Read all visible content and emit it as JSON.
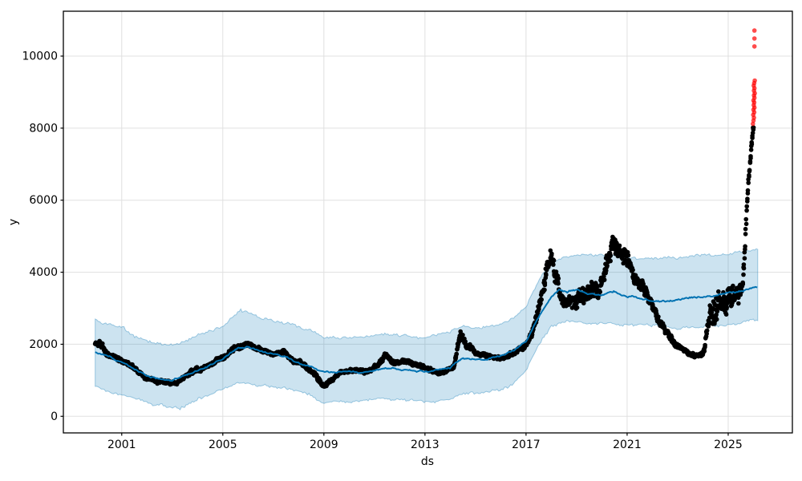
{
  "figure": {
    "background": "#ffffff"
  },
  "chart_data": {
    "type": "scatter",
    "description": "Prophet-style time-series forecast plot: black observed points, blue forecast line (yhat), light-blue uncertainty band, red anomaly points at the recent spike",
    "title": "",
    "xlabel": "ds",
    "ylabel": "y",
    "xlim": [
      1998.69,
      2027.54
    ],
    "ylim": [
      -461,
      11246
    ],
    "x_ticks": [
      2001,
      2005,
      2009,
      2013,
      2017,
      2021,
      2025
    ],
    "y_ticks": [
      0,
      2000,
      4000,
      6000,
      8000,
      10000
    ],
    "grid": true,
    "legend": "none",
    "colors": {
      "observations": "#000000",
      "forecast_line": "#0072B2",
      "uncertainty_band": "rgba(0,114,178,0.2)",
      "uncertainty_edge": "rgba(0,114,178,0.35)",
      "anomalies": "rgba(255,0,0,0.7)",
      "grid": "#e0e0e0",
      "axis": "#000000"
    },
    "series": [
      {
        "name": "observations",
        "kind": "scatter-dense",
        "note": "keyframes are [year, value, local_scatter_amplitude] read off the chart",
        "keyframes": [
          [
            1999.95,
            2020,
            110
          ],
          [
            2000.15,
            2050,
            190
          ],
          [
            2000.5,
            1680,
            110
          ],
          [
            2001.0,
            1500,
            95
          ],
          [
            2001.5,
            1320,
            95
          ],
          [
            2002.0,
            1060,
            85
          ],
          [
            2002.6,
            940,
            85
          ],
          [
            2003.1,
            880,
            90
          ],
          [
            2003.6,
            1150,
            95
          ],
          [
            2004.1,
            1310,
            95
          ],
          [
            2004.6,
            1480,
            95
          ],
          [
            2005.1,
            1620,
            95
          ],
          [
            2005.6,
            1950,
            105
          ],
          [
            2006.0,
            1980,
            100
          ],
          [
            2006.5,
            1820,
            95
          ],
          [
            2007.0,
            1720,
            95
          ],
          [
            2007.4,
            1780,
            95
          ],
          [
            2007.8,
            1520,
            105
          ],
          [
            2008.2,
            1460,
            105
          ],
          [
            2008.6,
            1220,
            105
          ],
          [
            2009.0,
            880,
            95
          ],
          [
            2009.35,
            1060,
            85
          ],
          [
            2009.7,
            1260,
            85
          ],
          [
            2010.1,
            1300,
            85
          ],
          [
            2010.6,
            1210,
            85
          ],
          [
            2011.1,
            1360,
            95
          ],
          [
            2011.4,
            1720,
            115
          ],
          [
            2011.8,
            1500,
            95
          ],
          [
            2012.3,
            1560,
            95
          ],
          [
            2012.8,
            1380,
            85
          ],
          [
            2013.3,
            1230,
            85
          ],
          [
            2013.8,
            1270,
            85
          ],
          [
            2014.15,
            1380,
            95
          ],
          [
            2014.4,
            2350,
            260
          ],
          [
            2014.65,
            1950,
            140
          ],
          [
            2015.1,
            1720,
            95
          ],
          [
            2015.6,
            1630,
            85
          ],
          [
            2016.1,
            1620,
            85
          ],
          [
            2016.6,
            1740,
            95
          ],
          [
            2017.0,
            1980,
            130
          ],
          [
            2017.3,
            2500,
            210
          ],
          [
            2017.6,
            3300,
            290
          ],
          [
            2017.85,
            4350,
            360
          ],
          [
            2018.0,
            4550,
            430
          ],
          [
            2018.2,
            3900,
            410
          ],
          [
            2018.45,
            3100,
            360
          ],
          [
            2018.7,
            3250,
            400
          ],
          [
            2018.95,
            2950,
            360
          ],
          [
            2019.2,
            3450,
            450
          ],
          [
            2019.5,
            3300,
            410
          ],
          [
            2019.8,
            3500,
            410
          ],
          [
            2020.1,
            3950,
            410
          ],
          [
            2020.45,
            4750,
            410
          ],
          [
            2020.7,
            4350,
            390
          ],
          [
            2021.0,
            4250,
            360
          ],
          [
            2021.3,
            3850,
            310
          ],
          [
            2021.6,
            3500,
            280
          ],
          [
            2021.9,
            3200,
            250
          ],
          [
            2022.2,
            2800,
            220
          ],
          [
            2022.5,
            2350,
            170
          ],
          [
            2022.8,
            2050,
            130
          ],
          [
            2023.1,
            1880,
            105
          ],
          [
            2023.45,
            1780,
            95
          ],
          [
            2023.8,
            1680,
            95
          ],
          [
            2024.05,
            1800,
            160
          ],
          [
            2024.3,
            3000,
            620
          ],
          [
            2024.6,
            3250,
            620
          ],
          [
            2024.9,
            3300,
            620
          ],
          [
            2025.15,
            3450,
            560
          ],
          [
            2025.4,
            3250,
            480
          ],
          [
            2025.58,
            3900,
            420
          ],
          [
            2025.68,
            5100,
            330
          ],
          [
            2025.76,
            6100,
            300
          ],
          [
            2025.84,
            6900,
            270
          ],
          [
            2025.92,
            7600,
            260
          ],
          [
            2026.0,
            8150,
            230
          ]
        ]
      },
      {
        "name": "forecast",
        "kind": "line",
        "note": "keyframes are [year, yhat]",
        "keyframes": [
          [
            1999.95,
            1800
          ],
          [
            2000.5,
            1680
          ],
          [
            2001,
            1500
          ],
          [
            2001.5,
            1340
          ],
          [
            2002,
            1150
          ],
          [
            2002.5,
            1060
          ],
          [
            2003,
            1020
          ],
          [
            2003.5,
            1120
          ],
          [
            2004,
            1300
          ],
          [
            2004.5,
            1430
          ],
          [
            2005,
            1560
          ],
          [
            2005.6,
            1880
          ],
          [
            2006,
            1890
          ],
          [
            2006.5,
            1780
          ],
          [
            2007,
            1700
          ],
          [
            2007.5,
            1650
          ],
          [
            2008,
            1490
          ],
          [
            2008.5,
            1370
          ],
          [
            2009,
            1220
          ],
          [
            2009.5,
            1180
          ],
          [
            2010,
            1250
          ],
          [
            2010.5,
            1230
          ],
          [
            2011,
            1260
          ],
          [
            2011.5,
            1310
          ],
          [
            2012,
            1310
          ],
          [
            2012.5,
            1290
          ],
          [
            2013,
            1250
          ],
          [
            2013.5,
            1270
          ],
          [
            2014,
            1330
          ],
          [
            2014.45,
            1580
          ],
          [
            2015,
            1550
          ],
          [
            2015.5,
            1580
          ],
          [
            2016,
            1660
          ],
          [
            2016.5,
            1790
          ],
          [
            2017,
            2100
          ],
          [
            2017.5,
            2800
          ],
          [
            2018,
            3350
          ],
          [
            2018.3,
            3550
          ],
          [
            2018.6,
            3480
          ],
          [
            2019,
            3520
          ],
          [
            2019.5,
            3400
          ],
          [
            2020,
            3380
          ],
          [
            2020.5,
            3460
          ],
          [
            2021,
            3320
          ],
          [
            2021.5,
            3280
          ],
          [
            2022,
            3220
          ],
          [
            2022.5,
            3190
          ],
          [
            2023,
            3210
          ],
          [
            2023.5,
            3260
          ],
          [
            2024,
            3310
          ],
          [
            2024.5,
            3360
          ],
          [
            2025,
            3410
          ],
          [
            2025.6,
            3460
          ],
          [
            2026.18,
            3600
          ]
        ]
      },
      {
        "name": "uncertainty-interval",
        "kind": "band",
        "note": "keyframes are [year, lower, upper]",
        "keyframes": [
          [
            1999.95,
            850,
            2700
          ],
          [
            2001,
            620,
            2420
          ],
          [
            2002,
            380,
            2060
          ],
          [
            2002.7,
            250,
            1980
          ],
          [
            2003.3,
            230,
            1960
          ],
          [
            2004,
            540,
            2200
          ],
          [
            2005,
            760,
            2460
          ],
          [
            2005.7,
            1000,
            2880
          ],
          [
            2006.5,
            900,
            2720
          ],
          [
            2007.5,
            760,
            2560
          ],
          [
            2008.5,
            560,
            2360
          ],
          [
            2009,
            400,
            2160
          ],
          [
            2010,
            420,
            2140
          ],
          [
            2011,
            450,
            2190
          ],
          [
            2012,
            460,
            2240
          ],
          [
            2013,
            430,
            2200
          ],
          [
            2014,
            520,
            2300
          ],
          [
            2014.5,
            680,
            2480
          ],
          [
            2015,
            680,
            2450
          ],
          [
            2016,
            740,
            2550
          ],
          [
            2016.5,
            900,
            2700
          ],
          [
            2017,
            1250,
            3020
          ],
          [
            2017.5,
            1950,
            3750
          ],
          [
            2018,
            2480,
            4320
          ],
          [
            2018.5,
            2600,
            4480
          ],
          [
            2019,
            2620,
            4520
          ],
          [
            2020,
            2560,
            4460
          ],
          [
            2021,
            2510,
            4410
          ],
          [
            2022,
            2460,
            4360
          ],
          [
            2023,
            2460,
            4360
          ],
          [
            2024,
            2510,
            4420
          ],
          [
            2025,
            2560,
            4500
          ],
          [
            2026.18,
            2680,
            4720
          ]
        ]
      },
      {
        "name": "anomalies",
        "kind": "scatter",
        "note": "points are [year, value]",
        "points": [
          [
            2025.98,
            8120
          ],
          [
            2026.0,
            8210
          ],
          [
            2026.02,
            8290
          ],
          [
            2025.99,
            8370
          ],
          [
            2026.03,
            8440
          ],
          [
            2026.0,
            8510
          ],
          [
            2026.04,
            8570
          ],
          [
            2026.01,
            8640
          ],
          [
            2026.03,
            8710
          ],
          [
            2026.0,
            8770
          ],
          [
            2026.04,
            8840
          ],
          [
            2026.02,
            8910
          ],
          [
            2026.05,
            8970
          ],
          [
            2026.02,
            9040
          ],
          [
            2026.04,
            9110
          ],
          [
            2026.01,
            9180
          ],
          [
            2026.03,
            9250
          ],
          [
            2026.05,
            9320
          ],
          [
            2026.04,
            10270
          ],
          [
            2026.04,
            10490
          ],
          [
            2026.04,
            10710
          ]
        ]
      }
    ],
    "noise": {
      "seed": 13,
      "obs_step": 0.022,
      "band_step": 0.06,
      "line_step": 0.04,
      "band_jitter": 55,
      "line_jitter": 16
    }
  }
}
